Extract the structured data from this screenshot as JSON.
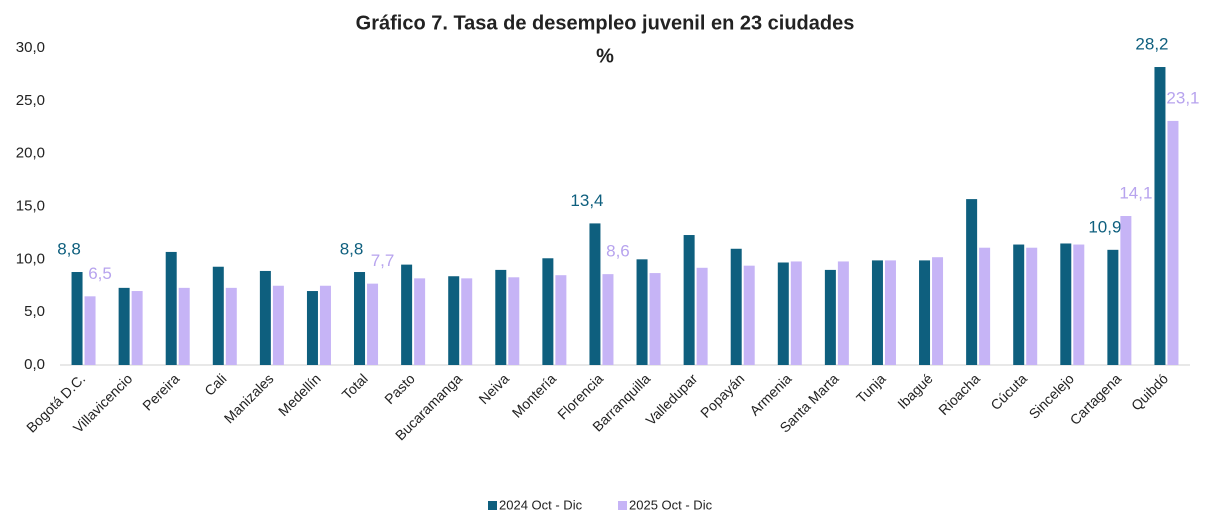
{
  "chart_data": {
    "type": "bar",
    "title": "Gráfico 7. Tasa de desempleo juvenil en 23 ciudades",
    "subtitle": "%",
    "categories": [
      "Bogotá D.C.",
      "Villavicencio",
      "Pereira",
      "Cali",
      "Manizales",
      "Medellín",
      "Total",
      "Pasto",
      "Bucaramanga",
      "Neiva",
      "Montería",
      "Florencia",
      "Barranquilla",
      "Valledupar",
      "Popayán",
      "Armenia",
      "Santa Marta",
      "Tunja",
      "Ibagué",
      "Rioacha",
      "Cúcuta",
      "Sincelejo",
      "Cartagena",
      "Quibdó"
    ],
    "series": [
      {
        "name": "2024 Oct - Dic",
        "color": "#0e5f7e",
        "values": [
          8.8,
          7.3,
          10.7,
          9.3,
          8.9,
          7.0,
          8.8,
          9.5,
          8.4,
          9.0,
          10.1,
          13.4,
          10.0,
          12.3,
          11.0,
          9.7,
          9.0,
          9.9,
          9.9,
          15.7,
          11.4,
          11.5,
          10.9,
          28.2
        ],
        "value_labels": [
          "8,8",
          null,
          null,
          null,
          null,
          null,
          "8,8",
          null,
          null,
          null,
          null,
          "13,4",
          null,
          null,
          null,
          null,
          null,
          null,
          null,
          null,
          null,
          null,
          "10,9",
          "28,2"
        ]
      },
      {
        "name": "2025 Oct - Dic",
        "color": "#c6b4f6",
        "values": [
          6.5,
          7.0,
          7.3,
          7.3,
          7.5,
          7.5,
          7.7,
          8.2,
          8.2,
          8.3,
          8.5,
          8.6,
          8.7,
          9.2,
          9.4,
          9.8,
          9.8,
          9.9,
          10.2,
          11.1,
          11.1,
          11.4,
          14.1,
          23.1
        ],
        "value_labels": [
          "6,5",
          null,
          null,
          null,
          null,
          null,
          "7,7",
          null,
          null,
          null,
          null,
          "8,6",
          null,
          null,
          null,
          null,
          null,
          null,
          null,
          null,
          null,
          null,
          "14,1",
          "23,1"
        ]
      }
    ],
    "ylim": [
      0,
      30
    ],
    "yticks": [
      {
        "value": 0,
        "label": "0,0"
      },
      {
        "value": 5,
        "label": "5,0"
      },
      {
        "value": 10,
        "label": "10,0"
      },
      {
        "value": 15,
        "label": "15,0"
      },
      {
        "value": 20,
        "label": "20,0"
      },
      {
        "value": 25,
        "label": "25,0"
      },
      {
        "value": 30,
        "label": "30,0"
      }
    ],
    "grid": false,
    "legend": "bottom"
  }
}
